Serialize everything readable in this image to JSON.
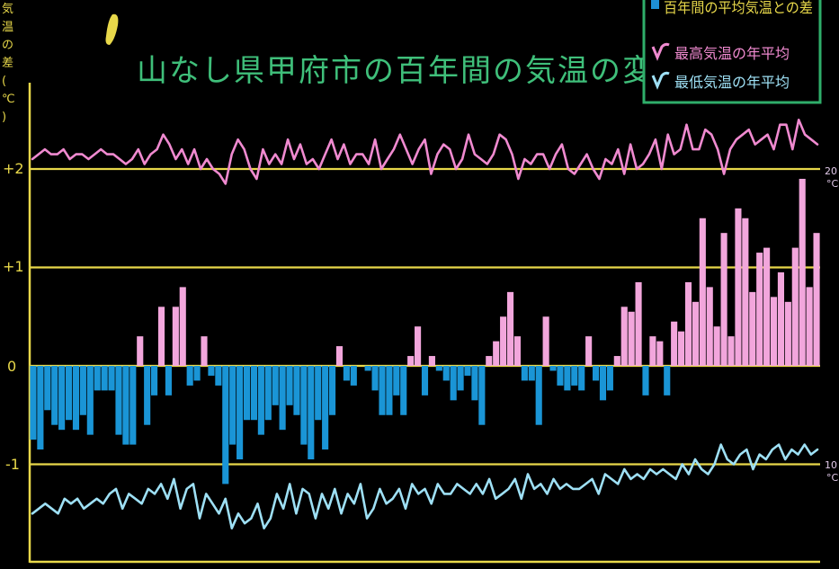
{
  "chart_data": {
    "type": "bar",
    "title": "山なし県甲府市の百年間の気温の変化",
    "ylabel": "気温の差(℃)",
    "yticks": [
      "+2",
      "+1",
      "0",
      "-1"
    ],
    "ylim": [
      -2,
      3.2
    ],
    "right_ticks": [
      {
        "label": "20",
        "unit": "°C"
      },
      {
        "label": "10",
        "unit": "°C"
      }
    ],
    "legend": [
      {
        "text": "百年間の平均気温との差",
        "color": "#1e90d6"
      },
      {
        "text": "最高気温の年平均",
        "color": "#f08ad0"
      },
      {
        "text": "最低気温の年平均",
        "color": "#8fd8f0"
      }
    ],
    "colors": {
      "positive": "#f2a6dc",
      "negative": "#1a95d6",
      "max_line": "#f08ad0",
      "min_line": "#9ee0f5",
      "axis": "#e8d84a",
      "title": "#3fbf7a",
      "legend_border": "#2fae6a"
    },
    "series": [
      {
        "name": "百年間の平均気温との差",
        "values": [
          -0.75,
          -0.85,
          -0.45,
          -0.6,
          -0.65,
          -0.55,
          -0.65,
          -0.5,
          -0.7,
          -0.25,
          -0.25,
          -0.25,
          -0.7,
          -0.8,
          -0.8,
          0.3,
          -0.6,
          -0.3,
          0.6,
          -0.3,
          0.6,
          0.8,
          -0.2,
          -0.15,
          0.3,
          -0.1,
          -0.2,
          -1.2,
          -0.8,
          -0.95,
          -0.55,
          -0.55,
          -0.7,
          -0.55,
          -0.4,
          -0.65,
          -0.4,
          -0.5,
          -0.8,
          -0.95,
          -0.55,
          -0.85,
          -0.5,
          0.2,
          -0.15,
          -0.2,
          0.0,
          -0.05,
          -0.25,
          -0.5,
          -0.5,
          -0.3,
          -0.5,
          0.1,
          0.4,
          -0.3,
          0.1,
          -0.05,
          -0.15,
          -0.35,
          -0.25,
          -0.1,
          -0.35,
          -0.6,
          0.1,
          0.25,
          0.5,
          0.75,
          0.3,
          -0.15,
          -0.15,
          -0.6,
          0.5,
          -0.05,
          -0.2,
          -0.25,
          -0.2,
          -0.25,
          0.3,
          -0.15,
          -0.35,
          -0.25,
          0.1,
          0.6,
          0.55,
          0.85,
          -0.3,
          0.3,
          0.25,
          -0.3,
          0.45,
          0.35,
          0.85,
          0.65,
          1.5,
          0.8,
          0.4,
          1.35,
          0.3,
          1.6,
          1.5,
          0.75,
          1.15,
          1.2,
          0.7,
          0.95,
          0.65,
          1.2,
          1.9,
          0.8,
          1.35
        ]
      },
      {
        "name": "最高気温の年平均",
        "values": [
          2.1,
          2.15,
          2.2,
          2.15,
          2.15,
          2.2,
          2.1,
          2.15,
          2.15,
          2.1,
          2.15,
          2.2,
          2.15,
          2.15,
          2.1,
          2.05,
          2.1,
          2.2,
          2.05,
          2.15,
          2.2,
          2.35,
          2.25,
          2.1,
          2.2,
          2.05,
          2.2,
          2.0,
          2.1,
          2.0,
          1.95,
          1.85,
          2.15,
          2.3,
          2.2,
          2.0,
          1.9,
          2.2,
          2.05,
          2.15,
          2.05,
          2.3,
          2.1,
          2.25,
          2.05,
          2.1,
          2.0,
          2.15,
          2.3,
          2.1,
          2.25,
          2.05,
          2.15,
          2.15,
          2.05,
          2.3,
          2.0,
          2.1,
          2.2,
          2.35,
          2.2,
          2.05,
          2.2,
          2.3,
          1.95,
          2.15,
          2.25,
          2.2,
          2.0,
          2.1,
          2.35,
          2.15,
          2.1,
          2.05,
          2.15,
          2.35,
          2.3,
          2.15,
          1.9,
          2.1,
          2.05,
          2.15,
          2.15,
          2.0,
          2.15,
          2.25,
          2.0,
          1.95,
          2.05,
          2.15,
          2.0,
          1.9,
          2.1,
          2.05,
          2.2,
          1.95,
          2.25,
          2.0,
          2.05,
          2.15,
          2.3,
          2.0,
          2.35,
          2.15,
          2.2,
          2.45,
          2.2,
          2.2,
          2.4,
          2.35,
          2.2,
          1.95,
          2.2,
          2.3,
          2.35,
          2.4,
          2.25,
          2.3,
          2.35,
          2.2,
          2.45,
          2.45,
          2.2,
          2.5,
          2.35,
          2.3,
          2.25
        ]
      },
      {
        "name": "最低気温の年平均",
        "values": [
          -1.5,
          -1.45,
          -1.4,
          -1.45,
          -1.5,
          -1.35,
          -1.4,
          -1.35,
          -1.45,
          -1.4,
          -1.35,
          -1.4,
          -1.3,
          -1.25,
          -1.45,
          -1.3,
          -1.35,
          -1.4,
          -1.25,
          -1.3,
          -1.2,
          -1.35,
          -1.15,
          -1.45,
          -1.25,
          -1.2,
          -1.55,
          -1.3,
          -1.4,
          -1.5,
          -1.35,
          -1.65,
          -1.5,
          -1.6,
          -1.55,
          -1.4,
          -1.65,
          -1.55,
          -1.3,
          -1.45,
          -1.2,
          -1.5,
          -1.25,
          -1.3,
          -1.55,
          -1.3,
          -1.45,
          -1.25,
          -1.5,
          -1.3,
          -1.4,
          -1.2,
          -1.55,
          -1.45,
          -1.25,
          -1.4,
          -1.35,
          -1.25,
          -1.45,
          -1.2,
          -1.3,
          -1.25,
          -1.4,
          -1.2,
          -1.3,
          -1.3,
          -1.2,
          -1.25,
          -1.3,
          -1.2,
          -1.3,
          -1.15,
          -1.35,
          -1.3,
          -1.25,
          -1.15,
          -1.35,
          -1.1,
          -1.25,
          -1.2,
          -1.3,
          -1.15,
          -1.25,
          -1.2,
          -1.25,
          -1.25,
          -1.2,
          -1.15,
          -1.3,
          -1.1,
          -1.15,
          -1.2,
          -1.05,
          -1.15,
          -1.1,
          -1.15,
          -1.05,
          -1.1,
          -1.05,
          -1.1,
          -1.15,
          -1.0,
          -1.1,
          -0.95,
          -1.05,
          -1.1,
          -1.0,
          -0.8,
          -0.95,
          -1.0,
          -0.9,
          -0.85,
          -1.05,
          -0.9,
          -0.95,
          -0.85,
          -0.8,
          -0.95,
          -0.85,
          -0.9,
          -0.8,
          -0.9,
          -0.85
        ]
      }
    ]
  }
}
